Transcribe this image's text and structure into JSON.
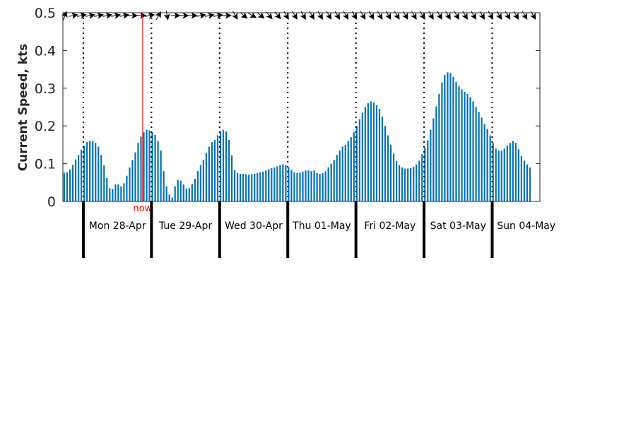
{
  "chart_data": {
    "type": "bar",
    "ylabel": "Current Speed, kts",
    "ylim": [
      0,
      0.5
    ],
    "yticks": [
      0,
      0.1,
      0.2,
      0.3,
      0.4,
      0.5
    ],
    "ytick_labels": [
      "0",
      "0.1",
      "0.2",
      "0.3",
      "0.4",
      "0.5"
    ],
    "grid": false,
    "bar_color": "#0072bd",
    "now_color": "#ff0000",
    "now_label": "now",
    "now_position_days": 0.87,
    "x_range_days": [
      -0.3,
      6.7
    ],
    "hours_per_bar": 1,
    "days": [
      {
        "label": "Mon 28-Apr"
      },
      {
        "label": "Tue 29-Apr"
      },
      {
        "label": "Wed 30-Apr"
      },
      {
        "label": "Thu 01-May"
      },
      {
        "label": "Fri 02-May"
      },
      {
        "label": "Sat 03-May"
      },
      {
        "label": "Sun 04-May"
      }
    ],
    "direction_degrees": [
      18,
      80,
      80,
      80,
      80,
      80,
      80,
      80,
      90,
      90,
      80,
      30,
      170,
      90,
      90,
      90,
      80,
      80,
      80,
      90,
      150,
      130,
      120,
      130,
      140,
      140,
      150,
      150,
      150,
      150,
      150,
      150,
      150,
      150,
      150,
      150,
      150,
      150,
      150,
      150,
      150,
      150,
      150,
      150,
      150,
      150,
      150,
      150,
      150,
      150,
      150,
      150,
      150,
      150,
      150,
      150,
      150,
      150,
      150,
      150,
      150,
      150,
      150,
      150,
      150,
      150,
      150,
      150,
      150,
      150
    ],
    "series": [
      {
        "values": [
          0.076,
          0.077,
          0.085,
          0.097,
          0.111,
          0.123,
          0.137,
          0.147,
          0.157,
          0.16,
          0.16,
          0.155,
          0.145,
          0.123,
          0.095,
          0.062,
          0.035,
          0.033,
          0.045,
          0.045,
          0.04,
          0.048,
          0.068,
          0.09,
          0.11,
          0.13,
          0.155,
          0.172,
          0.183,
          0.19,
          0.188,
          0.183,
          0.176,
          0.16,
          0.135,
          0.08,
          0.04,
          0.018,
          0.01,
          0.04,
          0.057,
          0.055,
          0.045,
          0.034,
          0.035,
          0.046,
          0.06,
          0.08,
          0.096,
          0.11,
          0.128,
          0.145,
          0.157,
          0.163,
          0.175,
          0.185,
          0.19,
          0.185,
          0.163,
          0.122,
          0.083,
          0.075,
          0.073,
          0.073,
          0.072,
          0.071,
          0.072,
          0.073,
          0.075,
          0.077,
          0.079,
          0.082,
          0.085,
          0.088,
          0.09,
          0.093,
          0.097,
          0.098,
          0.096,
          0.09,
          0.083,
          0.077,
          0.075,
          0.076,
          0.079,
          0.082,
          0.082,
          0.08,
          0.082,
          0.075,
          0.073,
          0.075,
          0.08,
          0.09,
          0.1,
          0.11,
          0.123,
          0.135,
          0.145,
          0.15,
          0.16,
          0.17,
          0.183,
          0.2,
          0.218,
          0.235,
          0.25,
          0.26,
          0.265,
          0.262,
          0.255,
          0.245,
          0.225,
          0.2,
          0.175,
          0.15,
          0.127,
          0.107,
          0.096,
          0.09,
          0.087,
          0.087,
          0.088,
          0.092,
          0.098,
          0.108,
          0.125,
          0.142,
          0.162,
          0.19,
          0.22,
          0.252,
          0.285,
          0.315,
          0.335,
          0.342,
          0.34,
          0.33,
          0.317,
          0.305,
          0.297,
          0.29,
          0.285,
          0.276,
          0.265,
          0.25,
          0.237,
          0.222,
          0.205,
          0.192,
          0.175,
          0.155,
          0.14,
          0.135,
          0.135,
          0.14,
          0.148,
          0.155,
          0.16,
          0.155,
          0.138,
          0.12,
          0.108,
          0.098,
          0.09
        ]
      }
    ]
  }
}
